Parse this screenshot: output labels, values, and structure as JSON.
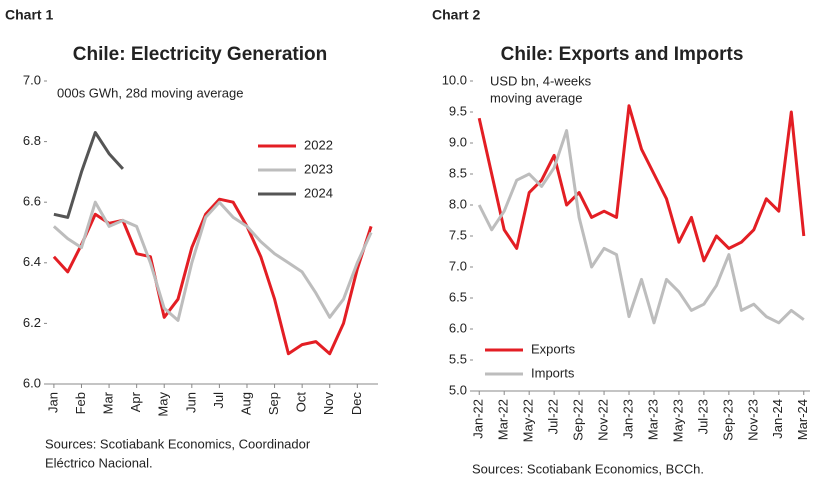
{
  "chart_data": [
    {
      "type": "line",
      "label": "Chart 1",
      "title": "Chile: Electricity Generation",
      "annotation": [
        "000s GWh, 28d moving average"
      ],
      "source": [
        "Sources: Scotiabank Economics, Coordinador",
        "Eléctrico Nacional."
      ],
      "categories": [
        "Jan",
        null,
        "Feb",
        null,
        "Mar",
        null,
        "Apr",
        null,
        "May",
        null,
        "Jun",
        null,
        "Jul",
        null,
        "Aug",
        null,
        "Sep",
        null,
        "Oct",
        null,
        "Nov",
        null,
        "Dec",
        null
      ],
      "series": [
        {
          "name": "2022",
          "color": "#e31e24",
          "values": [
            6.42,
            6.37,
            6.46,
            6.56,
            6.53,
            6.54,
            6.43,
            6.42,
            6.22,
            6.28,
            6.45,
            6.56,
            6.61,
            6.6,
            6.52,
            6.42,
            6.28,
            6.1,
            6.13,
            6.14,
            6.1,
            6.2,
            6.38,
            6.52
          ]
        },
        {
          "name": "2023",
          "color": "#bdbdbd",
          "values": [
            6.52,
            6.48,
            6.45,
            6.6,
            6.52,
            6.54,
            6.52,
            6.4,
            6.25,
            6.21,
            6.4,
            6.55,
            6.6,
            6.55,
            6.52,
            6.47,
            6.43,
            6.4,
            6.37,
            6.3,
            6.22,
            6.28,
            6.4,
            6.5
          ]
        },
        {
          "name": "2024",
          "color": "#555555",
          "values": [
            6.56,
            6.55,
            6.7,
            6.83,
            6.76,
            6.71,
            null,
            null,
            null,
            null,
            null,
            null,
            null,
            null,
            null,
            null,
            null,
            null,
            null,
            null,
            null,
            null,
            null,
            null
          ]
        }
      ],
      "ylim": [
        6.0,
        7.0
      ],
      "yticks": [
        {
          "value": 6,
          "label": "6.0"
        },
        6.2,
        6.4,
        6.6,
        6.8,
        {
          "value": 7,
          "label": "7.0"
        }
      ],
      "legend": "upper right",
      "grid": false
    },
    {
      "type": "line",
      "label": "Chart 2",
      "title": "Chile: Exports and Imports",
      "annotation": [
        "USD bn, 4-weeks",
        "moving average"
      ],
      "source": [
        "Sources: Scotiabank Economics, BCCh."
      ],
      "categories": [
        "Jan-22",
        null,
        "Mar-22",
        null,
        "May-22",
        null,
        "Jul-22",
        null,
        "Sep-22",
        null,
        "Nov-22",
        null,
        "Jan-23",
        null,
        "Mar-23",
        null,
        "May-23",
        null,
        "Jul-23",
        null,
        "Sep-23",
        null,
        "Nov-23",
        null,
        "Jan-24",
        null,
        "Mar-24"
      ],
      "series": [
        {
          "name": "Exports",
          "color": "#e31e24",
          "values": [
            9.4,
            8.5,
            7.6,
            7.3,
            8.2,
            8.4,
            8.8,
            8.0,
            8.2,
            7.8,
            7.9,
            7.8,
            9.6,
            8.9,
            8.5,
            8.1,
            7.4,
            7.8,
            7.1,
            7.5,
            7.3,
            7.4,
            7.6,
            8.1,
            7.9,
            9.5,
            7.5
          ]
        },
        {
          "name": "Imports",
          "color": "#bdbdbd",
          "values": [
            8.0,
            7.6,
            7.9,
            8.4,
            8.5,
            8.3,
            8.6,
            9.2,
            7.8,
            7.0,
            7.3,
            7.2,
            6.2,
            6.8,
            6.1,
            6.8,
            6.6,
            6.3,
            6.4,
            6.7,
            7.2,
            6.3,
            6.4,
            6.2,
            6.1,
            6.3,
            6.15
          ]
        }
      ],
      "ylim": [
        5.0,
        10.0
      ],
      "yticks": [
        {
          "value": 5,
          "label": "5.0"
        },
        5.5,
        {
          "value": 6,
          "label": "6.0"
        },
        6.5,
        {
          "value": 7,
          "label": "7.0"
        },
        7.5,
        {
          "value": 8,
          "label": "8.0"
        },
        8.5,
        {
          "value": 9,
          "label": "9.0"
        },
        9.5,
        {
          "value": 10,
          "label": "10.0"
        }
      ],
      "legend": "lower left",
      "grid": false
    }
  ]
}
